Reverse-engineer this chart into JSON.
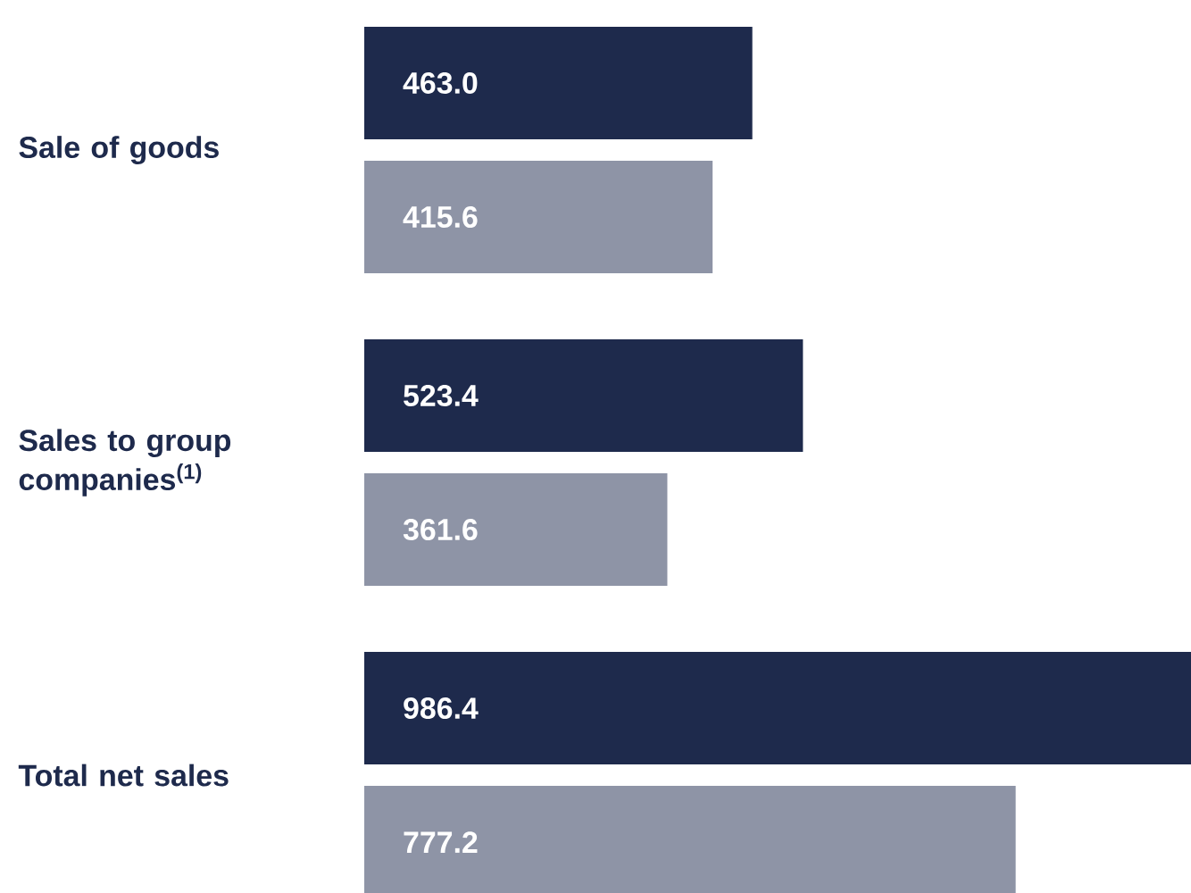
{
  "chart_data": {
    "type": "bar",
    "orientation": "horizontal",
    "categories": [
      "Sale of goods",
      "Sales to group companies$^{(1)}$",
      "Total net sales"
    ],
    "series": [
      {
        "color": "#1e2a4c",
        "values": [
          463.0,
          523.4,
          986.4
        ],
        "value_labels": [
          "463.0",
          "523.4",
          "986.4"
        ]
      },
      {
        "color": "#8e94a6",
        "values": [
          415.6,
          361.6,
          777.2
        ],
        "value_labels": [
          "415.6",
          "361.6",
          "777.2"
        ]
      }
    ]
  }
}
